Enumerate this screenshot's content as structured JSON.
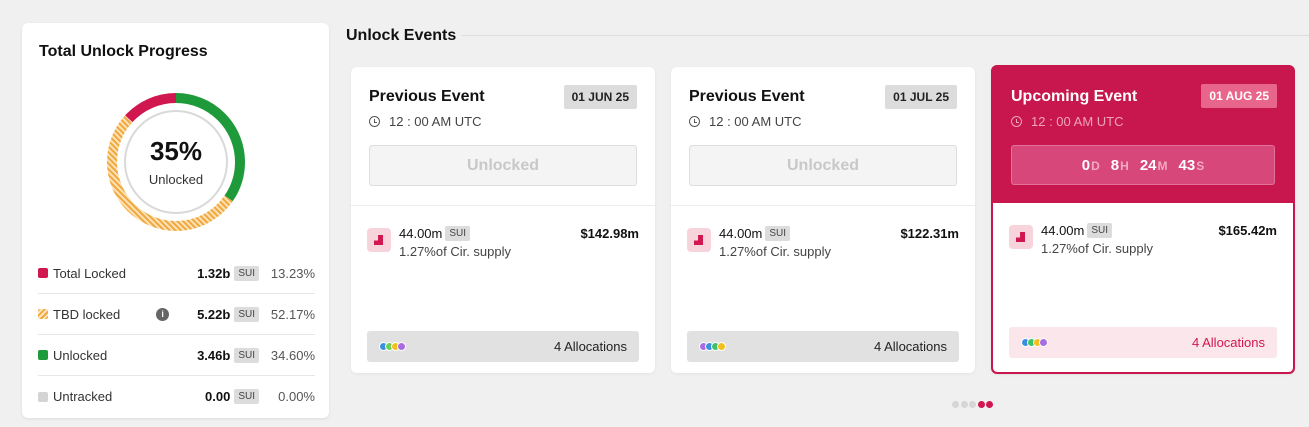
{
  "progress": {
    "title": "Total Unlock Progress",
    "percent": "35%",
    "percent_label": "Unlocked",
    "unlocked_fraction": 0.346,
    "locked_fraction": 0.1323,
    "tbd_fraction": 0.5217,
    "legend": [
      {
        "name": "Total Locked",
        "amount": "1.32b",
        "token": "SUI",
        "pct": "13.23%",
        "color": "#d0174f"
      },
      {
        "name": "TBD locked",
        "amount": "5.22b",
        "token": "SUI",
        "pct": "52.17%",
        "color": "#f0a83c",
        "info_icon": "i"
      },
      {
        "name": "Unlocked",
        "amount": "3.46b",
        "token": "SUI",
        "pct": "34.60%",
        "color": "#1e9a3a"
      },
      {
        "name": "Untracked",
        "amount": "0.00",
        "token": "SUI",
        "pct": "0.00%",
        "color": "#d4d4d4"
      }
    ]
  },
  "events": {
    "section_title": "Unlock Events",
    "cards": [
      {
        "title": "Previous Event",
        "date": "01 JUN 25",
        "time": "12 : 00 AM UTC",
        "status": "Unlocked",
        "amount": "44.00m",
        "token": "SUI",
        "supply": "1.27%of Cir. supply",
        "usd": "$142.98m",
        "allocations": "4 Allocations",
        "dot_colors": [
          "#3b8fe0",
          "#6fcf5a",
          "#f2c01c",
          "#a86ce0"
        ]
      },
      {
        "title": "Previous Event",
        "date": "01 JUL 25",
        "time": "12 : 00 AM UTC",
        "status": "Unlocked",
        "amount": "44.00m",
        "token": "SUI",
        "supply": "1.27%of Cir. supply",
        "usd": "$122.31m",
        "allocations": "4 Allocations",
        "dot_colors": [
          "#a86ce0",
          "#3b8fe0",
          "#3cc26a",
          "#f2c01c"
        ]
      },
      {
        "title": "Upcoming Event",
        "date": "01 AUG 25",
        "time": "12 : 00 AM UTC",
        "countdown": {
          "d": "0",
          "d_unit": "D",
          "h": "8",
          "h_unit": "H",
          "m": "24",
          "m_unit": "M",
          "s": "43",
          "s_unit": "S"
        },
        "amount": "44.00m",
        "token": "SUI",
        "supply": "1.27%of Cir. supply",
        "usd": "$165.42m",
        "allocations": "4 Allocations",
        "dot_colors": [
          "#3b8fe0",
          "#3cc26a",
          "#f2c01c",
          "#a86ce0"
        ]
      }
    ],
    "pager_count": 5,
    "pager_active": [
      3,
      4
    ]
  },
  "colors": {
    "accent": "#d0174f",
    "locked": "#d0174f",
    "tbd": "#f0a83c",
    "unlocked": "#1e9a3a"
  }
}
